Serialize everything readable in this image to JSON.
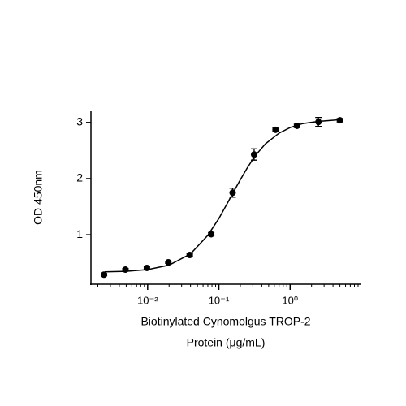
{
  "chart_data": {
    "type": "scatter",
    "ylabel": "OD 450nm",
    "xlabel": [
      "Biotinylated Cynomolgus TROP-2",
      "Protein (μg/mL)"
    ],
    "xscale": "log",
    "xlim": [
      0.0016,
      10
    ],
    "ylim": [
      0.12,
      3.2
    ],
    "xticks": [
      {
        "value": 0.01,
        "label": "10⁻²"
      },
      {
        "value": 0.1,
        "label": "10⁻¹"
      },
      {
        "value": 1,
        "label": "10⁰"
      }
    ],
    "xminorticks": [
      0.002,
      0.003,
      0.004,
      0.005,
      0.006,
      0.007,
      0.008,
      0.009,
      0.02,
      0.03,
      0.04,
      0.05,
      0.06,
      0.07,
      0.08,
      0.09,
      0.2,
      0.3,
      0.4,
      0.5,
      0.6,
      0.7,
      0.8,
      0.9,
      2,
      3,
      4,
      5,
      6,
      7,
      8,
      9
    ],
    "yticks": [
      1,
      2,
      3
    ],
    "color": "#000000",
    "points": {
      "x": [
        0.00244,
        0.00488,
        0.00977,
        0.0195,
        0.039,
        0.078,
        0.156,
        0.3125,
        0.625,
        1.25,
        2.5,
        5
      ],
      "y": [
        0.29,
        0.38,
        0.41,
        0.51,
        0.64,
        1.01,
        1.75,
        2.43,
        2.87,
        2.94,
        3.01,
        3.04
      ],
      "errors": [
        0.02,
        0.02,
        0.02,
        0.02,
        0.02,
        0.03,
        0.08,
        0.1,
        0.03,
        0.03,
        0.08,
        0.03
      ]
    },
    "fit": {
      "x": [
        0.0025,
        0.005,
        0.01,
        0.02,
        0.04,
        0.07,
        0.1,
        0.13,
        0.16,
        0.2,
        0.25,
        0.32,
        0.45,
        0.7,
        1,
        1.5,
        2.5,
        5
      ],
      "y": [
        0.34,
        0.35,
        0.38,
        0.46,
        0.66,
        0.99,
        1.29,
        1.55,
        1.76,
        1.98,
        2.19,
        2.4,
        2.62,
        2.81,
        2.91,
        2.98,
        3.02,
        3.05
      ]
    }
  }
}
